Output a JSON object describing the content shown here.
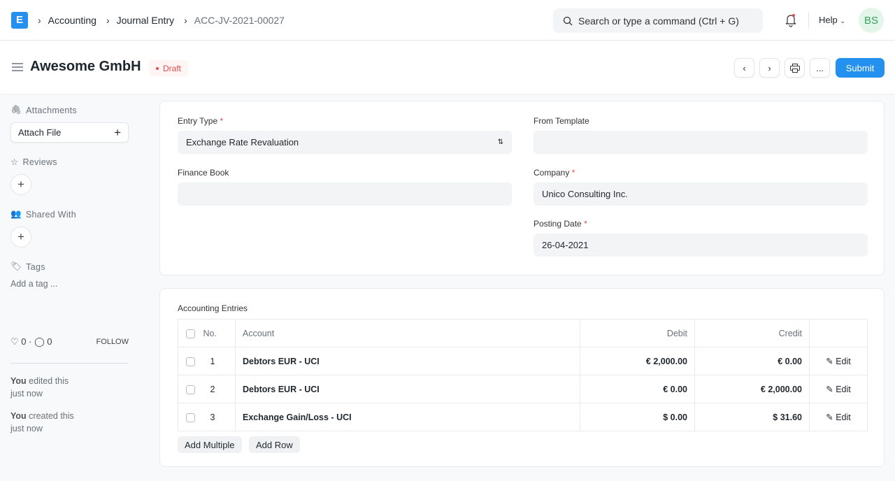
{
  "nav": {
    "logo": "E",
    "breadcrumbs": [
      "Accounting",
      "Journal Entry",
      "ACC-JV-2021-00027"
    ],
    "search_placeholder": "Search or type a command (Ctrl + G)",
    "help": "Help",
    "avatar": "BS"
  },
  "header": {
    "title": "Awesome GmbH",
    "status": "Draft",
    "submit": "Submit",
    "more": "..."
  },
  "sidebar": {
    "attachments": "Attachments",
    "attach_file": "Attach File",
    "reviews": "Reviews",
    "shared_with": "Shared With",
    "tags": "Tags",
    "add_tag": "Add a tag ...",
    "likes": "0",
    "comments": "0",
    "follow": "FOLLOW",
    "activity": [
      {
        "who": "You",
        "action": " edited this",
        "when": "just now"
      },
      {
        "who": "You",
        "action": " created this",
        "when": "just now"
      }
    ]
  },
  "form": {
    "entry_type_label": "Entry Type",
    "entry_type": "Exchange Rate Revaluation",
    "from_template_label": "From Template",
    "from_template": "",
    "finance_book_label": "Finance Book",
    "finance_book": "",
    "company_label": "Company",
    "company": "Unico Consulting Inc.",
    "posting_date_label": "Posting Date",
    "posting_date": "26-04-2021"
  },
  "entries": {
    "label": "Accounting Entries",
    "columns": [
      "No.",
      "Account",
      "Debit",
      "Credit"
    ],
    "rows": [
      {
        "no": "1",
        "account": "Debtors EUR - UCI",
        "debit": "€ 2,000.00",
        "credit": "€ 0.00",
        "edit": "Edit"
      },
      {
        "no": "2",
        "account": "Debtors EUR - UCI",
        "debit": "€ 0.00",
        "credit": "€ 2,000.00",
        "edit": "Edit"
      },
      {
        "no": "3",
        "account": "Exchange Gain/Loss - UCI",
        "debit": "$ 0.00",
        "credit": "$ 31.60",
        "edit": "Edit"
      }
    ],
    "add_multiple": "Add Multiple",
    "add_row": "Add Row"
  }
}
